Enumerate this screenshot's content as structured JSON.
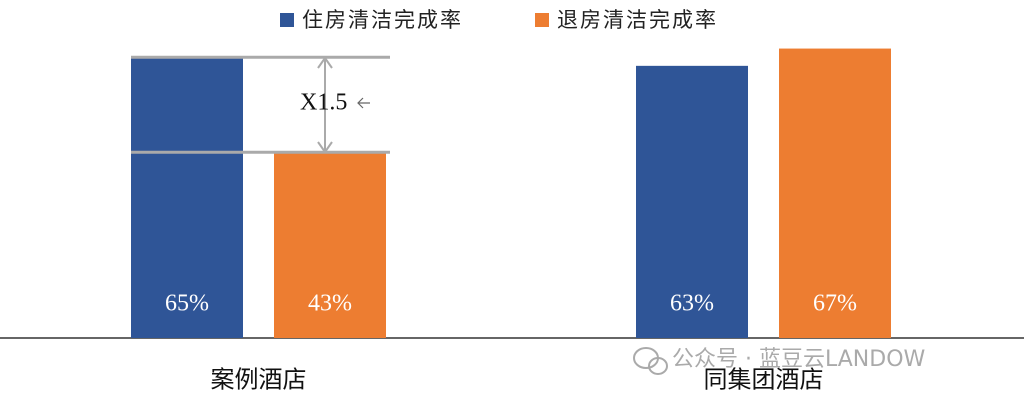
{
  "chart_data": {
    "type": "bar",
    "categories": [
      "案例酒店",
      "同集团酒店"
    ],
    "series": [
      {
        "name": "住房清洁完成率",
        "color": "#2f5597",
        "values": [
          65,
          63
        ],
        "value_labels": [
          "65%",
          "63%"
        ]
      },
      {
        "name": "退房清洁完成率",
        "color": "#ed7d31",
        "values": [
          43,
          67
        ],
        "value_labels": [
          "43%",
          "67%"
        ]
      }
    ],
    "annotation": "X1.5",
    "legend": "top",
    "watermark": "公众号 · 蓝豆云LANDOW"
  }
}
